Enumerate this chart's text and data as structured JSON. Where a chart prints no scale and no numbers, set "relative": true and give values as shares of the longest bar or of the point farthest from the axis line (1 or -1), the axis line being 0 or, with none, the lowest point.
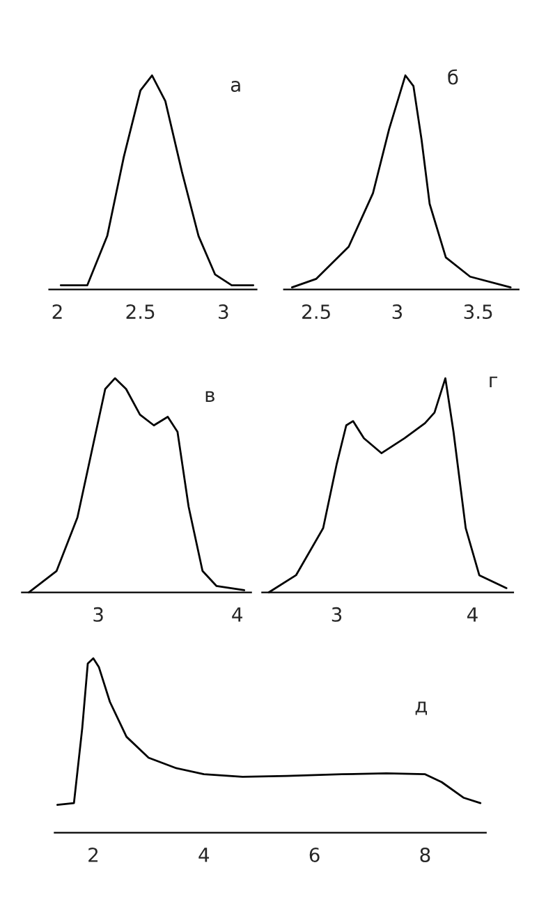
{
  "chart_data": [
    {
      "type": "line",
      "relative": true,
      "annotations": [
        "а"
      ],
      "xlim": [
        1.95,
        3.2
      ],
      "xticks": [
        2,
        2.5,
        3
      ],
      "grid": false,
      "legend": false,
      "series": [
        {
          "color": "#000000",
          "x": [
            2.02,
            2.18,
            2.3,
            2.4,
            2.5,
            2.57,
            2.65,
            2.75,
            2.85,
            2.95,
            3.05,
            3.18
          ],
          "values": [
            0.02,
            0.02,
            0.25,
            0.62,
            0.93,
            1.0,
            0.88,
            0.55,
            0.25,
            0.07,
            0.02,
            0.02
          ]
        }
      ]
    },
    {
      "type": "line",
      "relative": true,
      "annotations": [
        "б"
      ],
      "xlim": [
        2.3,
        3.75
      ],
      "xticks": [
        2.5,
        3,
        3.5
      ],
      "grid": false,
      "legend": false,
      "series": [
        {
          "color": "#000000",
          "x": [
            2.35,
            2.5,
            2.7,
            2.85,
            2.95,
            3.05,
            3.1,
            3.15,
            3.2,
            3.3,
            3.45,
            3.7
          ],
          "values": [
            0.01,
            0.05,
            0.2,
            0.45,
            0.75,
            1.0,
            0.95,
            0.7,
            0.4,
            0.15,
            0.06,
            0.01
          ]
        }
      ]
    },
    {
      "type": "line",
      "relative": true,
      "annotations": [
        "в"
      ],
      "xlim": [
        2.45,
        4.1
      ],
      "xticks": [
        3,
        4
      ],
      "grid": false,
      "legend": false,
      "series": [
        {
          "color": "#000000",
          "x": [
            2.5,
            2.7,
            2.85,
            2.95,
            3.05,
            3.12,
            3.2,
            3.3,
            3.4,
            3.5,
            3.57,
            3.65,
            3.75,
            3.85,
            4.05
          ],
          "values": [
            0.0,
            0.1,
            0.35,
            0.65,
            0.95,
            1.0,
            0.95,
            0.83,
            0.78,
            0.82,
            0.75,
            0.4,
            0.1,
            0.03,
            0.01
          ]
        }
      ]
    },
    {
      "type": "line",
      "relative": true,
      "annotations": [
        "г"
      ],
      "xlim": [
        2.45,
        4.3
      ],
      "xticks": [
        3,
        4
      ],
      "grid": false,
      "legend": false,
      "series": [
        {
          "color": "#000000",
          "x": [
            2.5,
            2.7,
            2.9,
            3.0,
            3.07,
            3.12,
            3.2,
            3.33,
            3.5,
            3.65,
            3.72,
            3.8,
            3.86,
            3.95,
            4.05,
            4.25
          ],
          "values": [
            0.0,
            0.08,
            0.3,
            0.6,
            0.78,
            0.8,
            0.72,
            0.65,
            0.72,
            0.79,
            0.84,
            1.0,
            0.75,
            0.3,
            0.08,
            0.02
          ]
        }
      ]
    },
    {
      "type": "line",
      "relative": true,
      "annotations": [
        "д"
      ],
      "xlim": [
        1.3,
        9.1
      ],
      "xticks": [
        2,
        4,
        6,
        8
      ],
      "grid": false,
      "legend": false,
      "series": [
        {
          "color": "#000000",
          "x": [
            1.35,
            1.65,
            1.8,
            1.9,
            2.0,
            2.1,
            2.3,
            2.6,
            3.0,
            3.5,
            4.0,
            4.7,
            5.5,
            6.5,
            7.3,
            8.0,
            8.3,
            8.7,
            9.0
          ],
          "values": [
            0.16,
            0.17,
            0.6,
            0.97,
            1.0,
            0.95,
            0.75,
            0.55,
            0.43,
            0.37,
            0.335,
            0.32,
            0.325,
            0.335,
            0.34,
            0.335,
            0.29,
            0.2,
            0.17
          ]
        }
      ]
    }
  ]
}
